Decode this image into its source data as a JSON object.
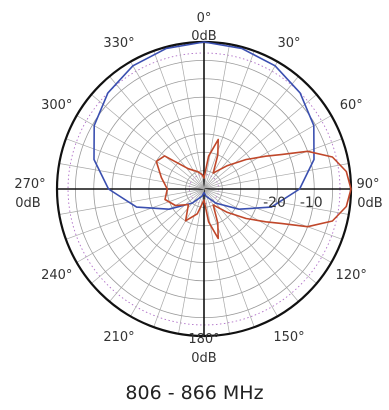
{
  "chart_data": {
    "type": "polar-line",
    "angle_labels": {
      "0": "0°",
      "30": "30°",
      "60": "60°",
      "90": "90°",
      "120": "120°",
      "150": "150°",
      "180": "180°",
      "210": "210°",
      "240": "240°",
      "270": "270°",
      "300": "300°",
      "330": "330°"
    },
    "db_labels": {
      "top": "0dB",
      "right": "0dB",
      "bottom": "0dB",
      "left": "0dB"
    },
    "ring_labels": [
      "-20",
      "-10"
    ],
    "ring_label_values": [
      -20,
      -10
    ],
    "r_range_db": [
      -40,
      0
    ],
    "grid": true,
    "series": [
      {
        "color": "#3a4fb0",
        "points": [
          [
            0,
            0
          ],
          [
            15,
            -0.4
          ],
          [
            30,
            -1.3
          ],
          [
            45,
            -3
          ],
          [
            60,
            -5.5
          ],
          [
            75,
            -9
          ],
          [
            90,
            -14
          ],
          [
            105,
            -21
          ],
          [
            120,
            -29
          ],
          [
            140,
            -35
          ],
          [
            165,
            -38
          ],
          [
            180,
            -39
          ],
          [
            195,
            -38
          ],
          [
            220,
            -35
          ],
          [
            240,
            -29
          ],
          [
            255,
            -21
          ],
          [
            270,
            -14
          ],
          [
            285,
            -9
          ],
          [
            300,
            -5.5
          ],
          [
            315,
            -3
          ],
          [
            330,
            -1.3
          ],
          [
            345,
            -0.4
          ]
        ]
      },
      {
        "color": "#c0472a",
        "points": [
          [
            0,
            -37
          ],
          [
            8,
            -31
          ],
          [
            16,
            -26
          ],
          [
            22,
            -30
          ],
          [
            30,
            -35
          ],
          [
            45,
            -31
          ],
          [
            55,
            -26
          ],
          [
            62,
            -21
          ],
          [
            66,
            -17
          ],
          [
            70,
            -10
          ],
          [
            76,
            -4
          ],
          [
            83,
            -1
          ],
          [
            90,
            0
          ],
          [
            97,
            -1
          ],
          [
            104,
            -4
          ],
          [
            110,
            -10
          ],
          [
            114,
            -17
          ],
          [
            118,
            -21
          ],
          [
            125,
            -26
          ],
          [
            135,
            -31
          ],
          [
            150,
            -35
          ],
          [
            158,
            -30
          ],
          [
            164,
            -26
          ],
          [
            172,
            -31
          ],
          [
            180,
            -37
          ],
          [
            195,
            -33
          ],
          [
            210,
            -30
          ],
          [
            225,
            -34
          ],
          [
            240,
            -31
          ],
          [
            255,
            -29
          ],
          [
            270,
            -30
          ],
          [
            285,
            -28
          ],
          [
            300,
            -25
          ],
          [
            310,
            -26
          ],
          [
            322,
            -33
          ],
          [
            340,
            -35
          ],
          [
            352,
            -36
          ]
        ]
      }
    ]
  },
  "caption": "806 - 866 MHz"
}
